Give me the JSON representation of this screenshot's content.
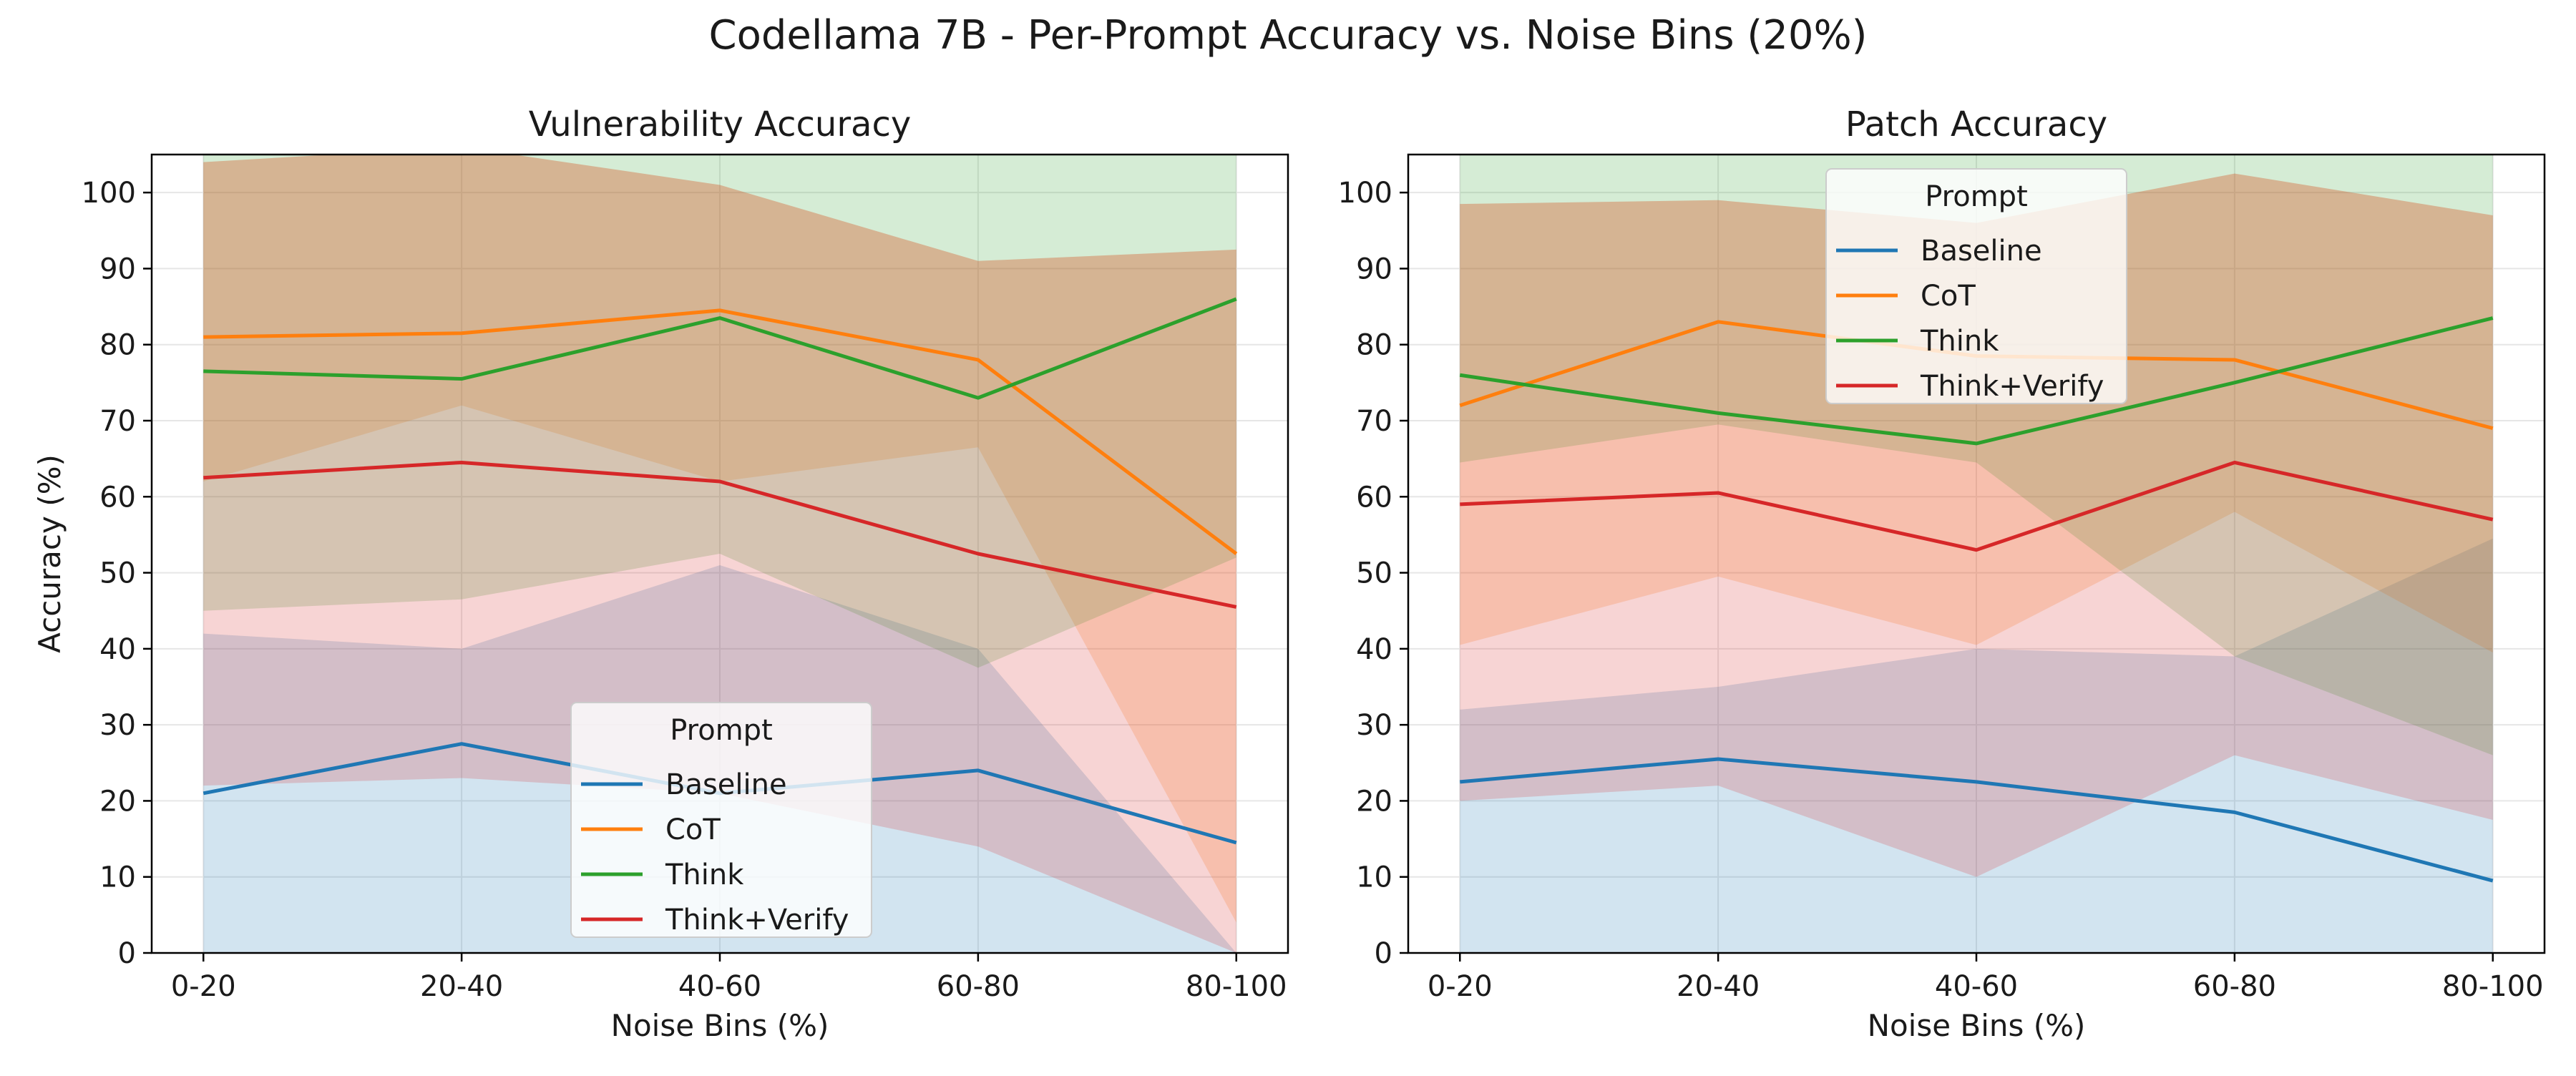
{
  "figure": {
    "title": "Codellama 7B - Per-Prompt Accuracy vs. Noise Bins (20%)"
  },
  "colors": {
    "Baseline": "#1f77b4",
    "CoT": "#ff7f0e",
    "Think": "#2ca02c",
    "Think+Verify": "#d62728",
    "grid": "#e6e6e6",
    "band_opacity": 0.2
  },
  "chart_data": [
    {
      "type": "line",
      "title": "Vulnerability Accuracy",
      "xlabel": "Noise Bins (%)",
      "ylabel": "Accuracy (%)",
      "categories": [
        "0-20",
        "20-40",
        "40-60",
        "60-80",
        "80-100"
      ],
      "ylim": [
        0,
        105
      ],
      "yticks": [
        0,
        10,
        20,
        30,
        40,
        50,
        60,
        70,
        80,
        90,
        100
      ],
      "grid": true,
      "legend": {
        "title": "Prompt",
        "placement": "lower center"
      },
      "series": [
        {
          "name": "Baseline",
          "values": [
            21,
            27.5,
            21,
            24,
            14.5
          ],
          "lower": [
            0,
            0,
            0,
            0,
            0
          ],
          "upper": [
            42,
            40,
            51,
            40,
            0
          ]
        },
        {
          "name": "CoT",
          "values": [
            81,
            81.5,
            84.5,
            78,
            52.5
          ],
          "lower": [
            62,
            72,
            62,
            66.5,
            4
          ],
          "upper": [
            104,
            106,
            101,
            91,
            92.5
          ]
        },
        {
          "name": "Think",
          "values": [
            76.5,
            75.5,
            83.5,
            73,
            86
          ],
          "lower": [
            45,
            46.5,
            52.5,
            37.5,
            52
          ],
          "upper": [
            108,
            110,
            112,
            108,
            118
          ]
        },
        {
          "name": "Think+Verify",
          "values": [
            62.5,
            64.5,
            62,
            52.5,
            45.5
          ],
          "lower": [
            22,
            23,
            21,
            14,
            0
          ],
          "upper": [
            104,
            106,
            101,
            91,
            92.5
          ]
        }
      ]
    },
    {
      "type": "line",
      "title": "Patch Accuracy",
      "xlabel": "Noise Bins (%)",
      "ylabel": "",
      "categories": [
        "0-20",
        "20-40",
        "40-60",
        "60-80",
        "80-100"
      ],
      "ylim": [
        0,
        105
      ],
      "yticks": [
        0,
        10,
        20,
        30,
        40,
        50,
        60,
        70,
        80,
        90,
        100
      ],
      "grid": true,
      "legend": {
        "title": "Prompt",
        "placement": "upper center"
      },
      "series": [
        {
          "name": "Baseline",
          "values": [
            22.5,
            25.5,
            22.5,
            18.5,
            9.5
          ],
          "lower": [
            0,
            0,
            0,
            0,
            0
          ],
          "upper": [
            32,
            35,
            40,
            39,
            54.5
          ]
        },
        {
          "name": "CoT",
          "values": [
            72,
            83,
            78.5,
            78,
            69
          ],
          "lower": [
            40.5,
            49.5,
            40.5,
            58,
            39.5
          ],
          "upper": [
            98.5,
            99,
            96,
            102.5,
            97
          ]
        },
        {
          "name": "Think",
          "values": [
            76,
            71,
            67,
            75,
            83.5
          ],
          "lower": [
            64.5,
            69.5,
            64.5,
            39,
            26
          ],
          "upper": [
            110,
            110,
            110,
            110,
            110
          ]
        },
        {
          "name": "Think+Verify",
          "values": [
            59,
            60.5,
            53,
            64.5,
            57
          ],
          "lower": [
            20,
            22,
            10,
            26,
            17.5
          ],
          "upper": [
            98.5,
            99,
            96,
            102.5,
            97
          ]
        }
      ]
    }
  ]
}
